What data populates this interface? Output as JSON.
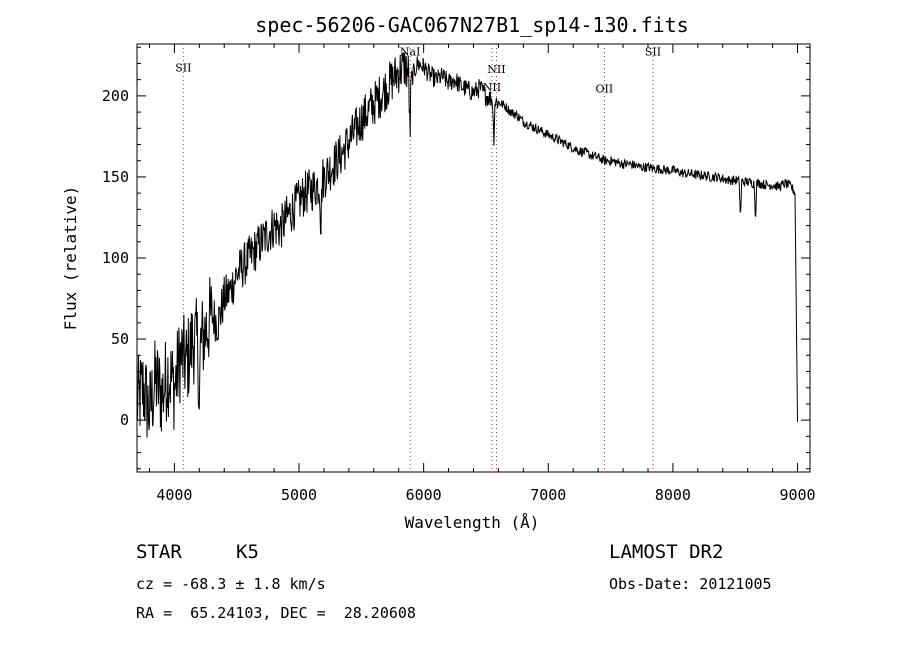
{
  "chart_data": {
    "type": "line",
    "title": "spec-56206-GAC067N27B1_sp14-130.fits",
    "xlabel": "Wavelength (Å)",
    "ylabel": "Flux (relative)",
    "xlim": [
      3700,
      9100
    ],
    "ylim": [
      -32,
      232
    ],
    "xticks": [
      4000,
      5000,
      6000,
      7000,
      8000,
      9000
    ],
    "yticks": [
      0,
      50,
      100,
      150,
      200
    ],
    "grid": false,
    "series": [
      {
        "x": [
          3700,
          3750,
          3800,
          3850,
          3900,
          3950,
          4000,
          4050,
          4100,
          4150,
          4200,
          4250,
          4300,
          4350,
          4400,
          4450,
          4500,
          4550,
          4600,
          4650,
          4700,
          4750,
          4800,
          4850,
          4900,
          4950,
          5000,
          5050,
          5100,
          5150,
          5200,
          5250,
          5300,
          5350,
          5400,
          5450,
          5500,
          5550,
          5600,
          5650,
          5700,
          5750,
          5800,
          5850,
          5900,
          5950,
          6000,
          6050,
          6100,
          6150,
          6200,
          6250,
          6300,
          6350,
          6400,
          6450,
          6500,
          6550,
          6600,
          6650,
          6700,
          6750,
          6800,
          6850,
          6900,
          6950,
          7000,
          7050,
          7100,
          7150,
          7200,
          7250,
          7300,
          7350,
          7400,
          7450,
          7500,
          7550,
          7600,
          7650,
          7700,
          7750,
          7800,
          7850,
          7900,
          7950,
          8000,
          8050,
          8100,
          8150,
          8200,
          8250,
          8300,
          8350,
          8400,
          8450,
          8500,
          8550,
          8600,
          8650,
          8700,
          8750,
          8800,
          8850,
          8900,
          8950,
          8980,
          9000
        ],
        "y": [
          10,
          20,
          5,
          25,
          15,
          30,
          20,
          40,
          35,
          50,
          45,
          55,
          65,
          60,
          75,
          80,
          90,
          95,
          100,
          105,
          110,
          115,
          120,
          118,
          125,
          130,
          135,
          140,
          142,
          145,
          150,
          155,
          160,
          165,
          172,
          178,
          185,
          190,
          195,
          200,
          205,
          210,
          215,
          218,
          210,
          220,
          218,
          213,
          210,
          212,
          208,
          210,
          206,
          204,
          202,
          205,
          200,
          198,
          196,
          194,
          190,
          188,
          184,
          182,
          180,
          178,
          176,
          174,
          172,
          170,
          168,
          166,
          165,
          163,
          162,
          160,
          160,
          159,
          158,
          158,
          157,
          156,
          156,
          155,
          155,
          154,
          154,
          153,
          152,
          152,
          151,
          151,
          150,
          150,
          149,
          148,
          148,
          147,
          147,
          146,
          146,
          145,
          145,
          144,
          146,
          144,
          140,
          0
        ],
        "absorption": [
          {
            "x": 5890,
            "depth": 38
          },
          {
            "x": 6563,
            "depth": 25
          },
          {
            "x": 5175,
            "depth": 30
          },
          {
            "x": 8542,
            "depth": 24
          },
          {
            "x": 8662,
            "depth": 22
          },
          {
            "x": 4200,
            "depth": 40
          }
        ]
      }
    ],
    "line_markers": [
      {
        "x": 4072,
        "label": "SII",
        "label_y": 215
      },
      {
        "x": 5892,
        "label": "NaI",
        "label_y": 225
      },
      {
        "x": 6548,
        "label": "NII",
        "label_y": 203
      },
      {
        "x": 6584,
        "label": "NII",
        "label_y": 214
      },
      {
        "x": 7450,
        "label": "OII",
        "label_y": 202
      },
      {
        "x": 7840,
        "label": "SII",
        "label_y": 225
      }
    ],
    "colors": {
      "trace": "#000000",
      "marker": "#dd2222"
    }
  },
  "info": {
    "type_label": "STAR",
    "subclass": "K5",
    "survey": "LAMOST DR2",
    "velocity": "cz = -68.3 ± 1.8 km/s",
    "obs_date": "Obs-Date: 20121005",
    "coords": "RA =  65.24103, DEC =  28.20608"
  }
}
